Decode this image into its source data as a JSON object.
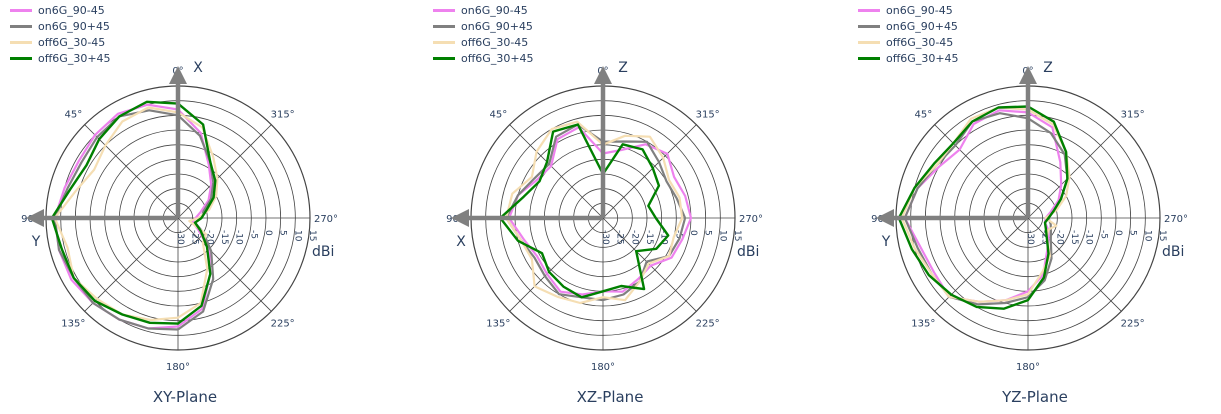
{
  "colors": {
    "on6G_90-45": "#ee82ee",
    "on6G_90+45": "#808080",
    "off6G_30-45": "#f5deb3",
    "off6G_30+45": "#008000",
    "grid": "#444444",
    "text": "#2a3f5f",
    "arrow": "#808080"
  },
  "chart_data": [
    {
      "type": "polar-line",
      "title": "XY-Plane",
      "radial_unit_label": "dBi",
      "radial_range": [
        -30,
        15
      ],
      "radial_ticks": [
        "-30",
        "-25",
        "-20",
        "-15",
        "-10",
        "-5",
        "0",
        "5",
        "10",
        "15"
      ],
      "angular_direction": "counterclockwise",
      "angular_ticks": [
        "0°",
        "45°",
        "90°",
        "135°",
        "180°",
        "225°",
        "270°",
        "315°"
      ],
      "axis_arrows": [
        {
          "label": "X",
          "angle": 0
        },
        {
          "label": "Y",
          "angle": 90
        }
      ],
      "angles_deg": [
        0,
        15,
        30,
        45,
        60,
        75,
        90,
        105,
        120,
        135,
        150,
        165,
        180,
        195,
        210,
        225,
        240,
        255,
        270,
        285,
        300,
        315,
        330,
        345
      ],
      "series": [
        {
          "name": "on6G_90-45",
          "values": [
            7,
            10,
            11,
            10,
            9,
            10,
            12,
            12,
            12,
            11,
            10,
            9,
            7,
            2,
            -8,
            -15,
            -22,
            -25,
            -24,
            -22,
            -18,
            -14,
            -9,
            0
          ]
        },
        {
          "name": "on6G_90+45",
          "values": [
            5,
            8,
            10,
            9,
            8,
            9,
            12,
            12,
            11,
            11,
            10,
            9,
            8,
            3,
            -6,
            -14,
            -20,
            -24,
            -22,
            -21,
            -17,
            -13,
            -8,
            -1
          ]
        },
        {
          "name": "off6G_30-45",
          "values": [
            6,
            9,
            8,
            5,
            3,
            6,
            12,
            9,
            11,
            9,
            8,
            6,
            4,
            0,
            -10,
            -18,
            -19,
            -26,
            -23,
            -19,
            -15,
            -11,
            -6,
            2
          ]
        },
        {
          "name": "off6G_30+45",
          "values": [
            9,
            11,
            10,
            8,
            6,
            8,
            13,
            11,
            11,
            10,
            8,
            7,
            6,
            1,
            -8,
            -16,
            -21,
            -24,
            -22,
            -20,
            -16,
            -12,
            -8,
            3
          ]
        }
      ]
    },
    {
      "type": "polar-line",
      "title": "XZ-Plane",
      "radial_unit_label": "dBi",
      "radial_range": [
        -30,
        15
      ],
      "radial_ticks": [
        "-30",
        "-25",
        "-20",
        "-15",
        "-10",
        "-5",
        "0",
        "5",
        "10",
        "15"
      ],
      "angular_direction": "counterclockwise",
      "angular_ticks": [
        "0°",
        "45°",
        "90°",
        "135°",
        "180°",
        "225°",
        "270°",
        "315°"
      ],
      "axis_arrows": [
        {
          "label": "Z",
          "angle": 0
        },
        {
          "label": "X",
          "angle": 90
        }
      ],
      "angles_deg": [
        0,
        15,
        30,
        45,
        60,
        75,
        90,
        105,
        120,
        135,
        150,
        165,
        180,
        195,
        210,
        225,
        240,
        255,
        270,
        285,
        300,
        315,
        330,
        345
      ],
      "series": [
        {
          "name": "on6G_90-45",
          "values": [
            -8,
            2,
            1,
            -5,
            -4,
            0,
            2,
            -2,
            -4,
            -3,
            -1,
            -3,
            -5,
            -4,
            -6,
            -7,
            -3,
            -2,
            0,
            -1,
            -2,
            1,
            -1,
            -6
          ]
        },
        {
          "name": "on6G_90+45",
          "values": [
            -4,
            3,
            2,
            -4,
            -3,
            0,
            3,
            -1,
            -3,
            -2,
            0,
            -2,
            -2,
            -3,
            -5,
            -9,
            -4,
            -3,
            -2,
            -4,
            -5,
            -3,
            0,
            -3
          ]
        },
        {
          "name": "off6G_30-45",
          "values": [
            -5,
            4,
            5,
            2,
            -2,
            2,
            3,
            -1,
            -2,
            3,
            1,
            0,
            -3,
            -1,
            -5,
            -8,
            -4,
            -5,
            -3,
            -3,
            -4,
            -1,
            2,
            -1
          ]
        },
        {
          "name": "off6G_30+45",
          "values": [
            -15,
            3,
            4,
            -3,
            -5,
            -2,
            5,
            0,
            -6,
            -4,
            -3,
            -2,
            -5,
            -6,
            -2,
            -14,
            -9,
            -7,
            -12,
            -14,
            -8,
            -6,
            -3,
            -4
          ]
        }
      ]
    },
    {
      "type": "polar-line",
      "title": "YZ-Plane",
      "radial_unit_label": "dBi",
      "radial_range": [
        -30,
        15
      ],
      "radial_ticks": [
        "-30",
        "-25",
        "-20",
        "-15",
        "-10",
        "-5",
        "0",
        "5",
        "10",
        "15"
      ],
      "angular_direction": "counterclockwise",
      "angular_ticks": [
        "0°",
        "45°",
        "90°",
        "135°",
        "180°",
        "225°",
        "270°",
        "315°"
      ],
      "axis_arrows": [
        {
          "label": "Z",
          "angle": 0
        },
        {
          "label": "Y",
          "angle": 90
        }
      ],
      "angles_deg": [
        0,
        15,
        30,
        45,
        60,
        75,
        90,
        105,
        120,
        135,
        150,
        165,
        180,
        195,
        210,
        225,
        240,
        255,
        270,
        285,
        300,
        315,
        330,
        345
      ],
      "series": [
        {
          "name": "on6G_90-45",
          "values": [
            6,
            8,
            7,
            3,
            5,
            9,
            12,
            8,
            7,
            8,
            3,
            -1,
            -5,
            -10,
            -17,
            -20,
            -22,
            -24,
            -24,
            -22,
            -18,
            -14,
            -8,
            2
          ]
        },
        {
          "name": "on6G_90+45",
          "values": [
            4,
            7,
            8,
            5,
            6,
            9,
            12,
            9,
            8,
            8,
            4,
            0,
            -3,
            -8,
            -14,
            -19,
            -21,
            -22,
            -23,
            -21,
            -17,
            -11,
            -5,
            0
          ]
        },
        {
          "name": "off6G_30-45",
          "values": [
            7,
            9,
            9,
            6,
            6,
            10,
            13,
            10,
            8,
            8,
            3,
            -1,
            -4,
            -11,
            -15,
            -21,
            -22,
            -20,
            -24,
            -20,
            -15,
            -10,
            -4,
            3
          ]
        },
        {
          "name": "off6G_30+45",
          "values": [
            8,
            9,
            8,
            6,
            7,
            10,
            14,
            11,
            9,
            7,
            5,
            2,
            -2,
            -9,
            -16,
            -21,
            -23,
            -24,
            -23,
            -21,
            -17,
            -11,
            -4,
            4
          ]
        }
      ]
    }
  ]
}
